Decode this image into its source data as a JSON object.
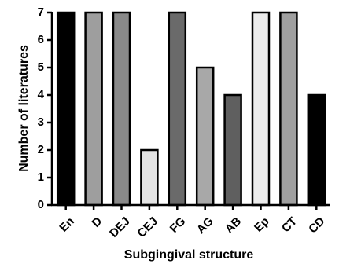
{
  "chart_data": {
    "type": "bar",
    "xlabel": "Subgingival structure",
    "ylabel": "Number of literatures",
    "ylim": [
      0,
      7
    ],
    "yticks": [
      0,
      1,
      2,
      3,
      4,
      5,
      6,
      7
    ],
    "categories": [
      "En",
      "D",
      "DEJ",
      "CEJ",
      "FG",
      "AG",
      "AB",
      "Ep",
      "CT",
      "CD"
    ],
    "values": [
      7,
      7,
      7,
      2,
      7,
      5,
      4,
      7,
      7,
      4
    ],
    "bar_colors": [
      "#000000",
      "#9e9e9e",
      "#8a8a8a",
      "#e3e3e3",
      "#6a6a6a",
      "#a8a8a8",
      "#5f5f5f",
      "#ececec",
      "#a0a0a0",
      "#000000"
    ],
    "bar_edge_color": "#000000",
    "grid": false,
    "legend": "none"
  }
}
